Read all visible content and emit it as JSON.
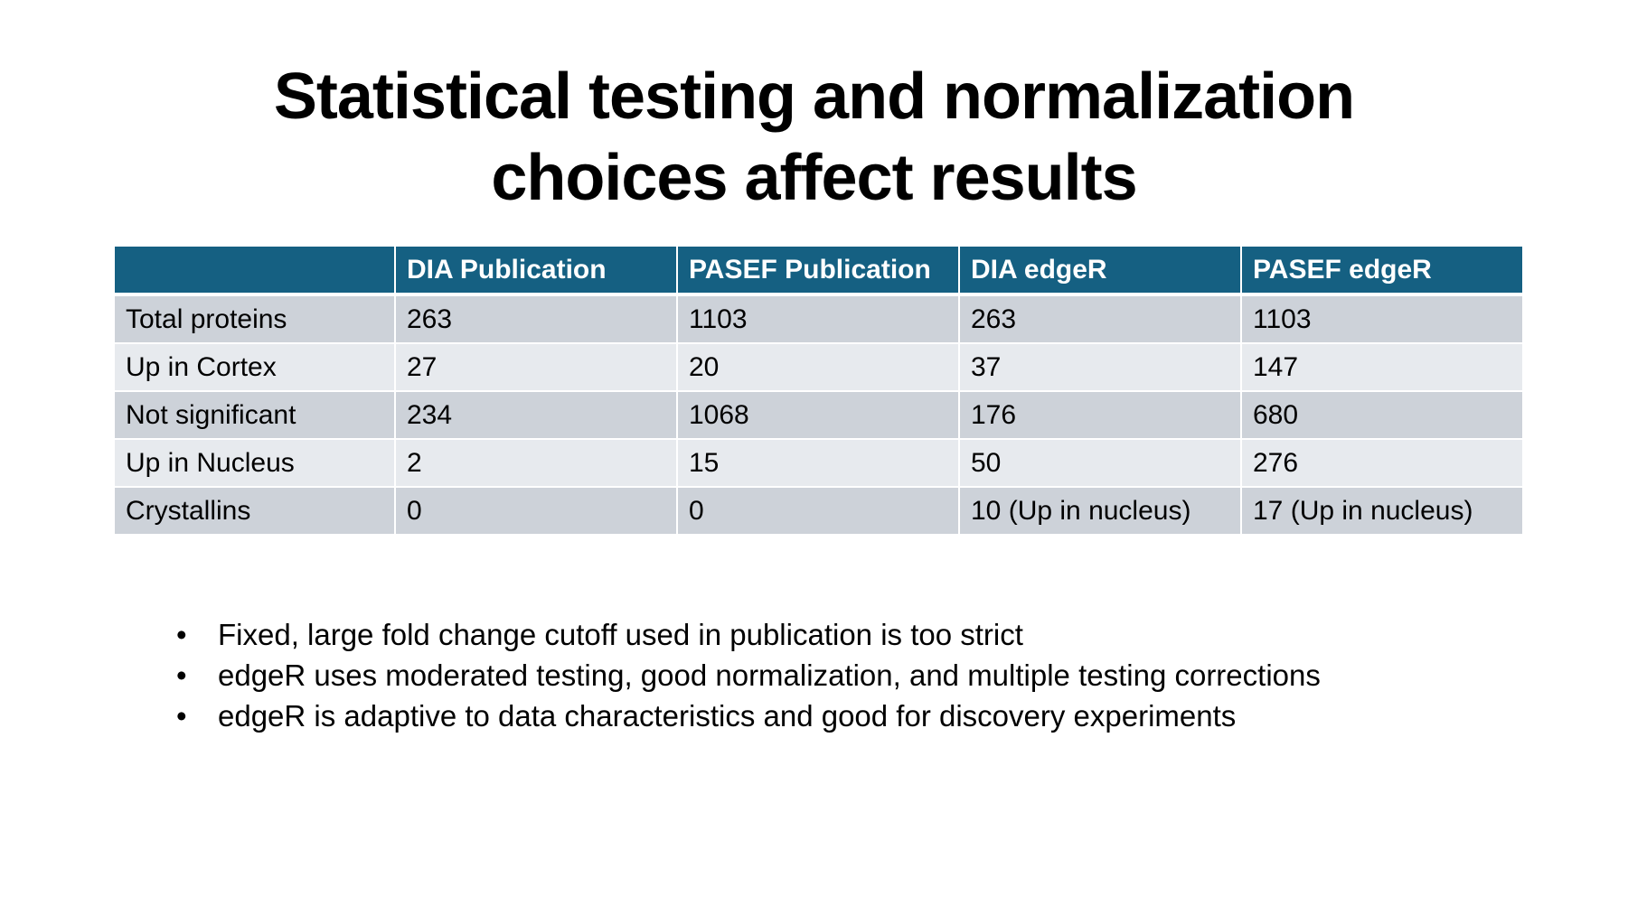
{
  "slide": {
    "title_lines": [
      "Statistical testing and normalization",
      "choices affect results"
    ]
  },
  "table": {
    "headers": [
      "",
      "DIA Publication",
      "PASEF Publication",
      "DIA edgeR",
      "PASEF edgeR"
    ],
    "rows": [
      [
        "Total proteins",
        "263",
        "1103",
        "263",
        "1103"
      ],
      [
        "Up in Cortex",
        "27",
        "20",
        "37",
        "147"
      ],
      [
        "Not significant",
        "234",
        "1068",
        "176",
        "680"
      ],
      [
        "Up in Nucleus",
        "2",
        "15",
        "50",
        "276"
      ],
      [
        "Crystallins",
        "0",
        "0",
        "10 (Up in nucleus)",
        "17 (Up in nucleus)"
      ]
    ],
    "header_color": "#156082",
    "row_color_odd": "#cdd2d9",
    "row_color_even": "#e7eaee"
  },
  "bullets": {
    "marker": "•",
    "items": [
      "Fixed, large fold change cutoff used in publication is too strict",
      "edgeR uses moderated testing, good normalization, and multiple testing corrections",
      "edgeR is adaptive to data characteristics and good for discovery experiments"
    ]
  }
}
